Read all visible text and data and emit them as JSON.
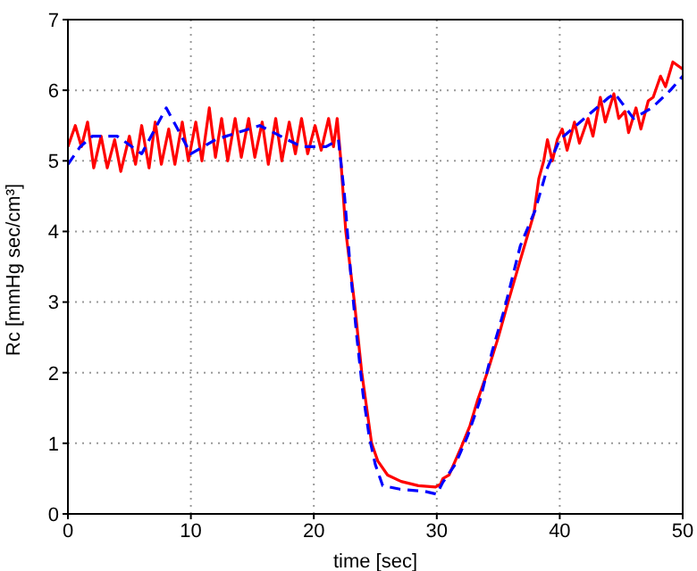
{
  "chart_data": {
    "type": "line",
    "xlabel": "time [sec]",
    "ylabel": "Rc [mmHg sec/cm³]",
    "xlim": [
      0,
      50
    ],
    "ylim": [
      0,
      7
    ],
    "xticks": [
      0,
      10,
      20,
      30,
      40,
      50
    ],
    "yticks": [
      0,
      1,
      2,
      3,
      4,
      5,
      6,
      7
    ],
    "grid": true,
    "marker": "none",
    "series": [
      {
        "color": "#ff0000",
        "line_style": "solid",
        "x": [
          0,
          0.6,
          1.1,
          1.6,
          2.1,
          2.7,
          3.2,
          3.8,
          4.3,
          5.0,
          5.5,
          6.0,
          6.6,
          7.1,
          7.6,
          8.2,
          8.7,
          9.3,
          9.8,
          10.4,
          10.9,
          11.5,
          12.0,
          12.5,
          13.0,
          13.6,
          14.1,
          14.7,
          15.2,
          15.8,
          16.3,
          16.9,
          17.4,
          18.0,
          18.5,
          19.0,
          19.5,
          20.1,
          20.6,
          21.2,
          21.6,
          21.9,
          22.2,
          22.6,
          23.3,
          23.9,
          24.7,
          25.2,
          26,
          27.1,
          28.5,
          29.9,
          30.3,
          30.5,
          31,
          31.5,
          32,
          32.7,
          33.3,
          34.1,
          35,
          35.8,
          36.8,
          37.9,
          38.3,
          38.7,
          39,
          39.4,
          39.8,
          40.2,
          40.6,
          41.2,
          41.6,
          42.3,
          42.7,
          43.3,
          43.7,
          44.4,
          44.8,
          45.3,
          45.6,
          46.2,
          46.6,
          47.2,
          47.6,
          48.2,
          48.6,
          49.2,
          49.6,
          50
        ],
        "values": [
          5.2,
          5.5,
          5.2,
          5.55,
          4.9,
          5.35,
          4.9,
          5.3,
          4.85,
          5.35,
          4.95,
          5.5,
          4.9,
          5.55,
          4.95,
          5.45,
          4.95,
          5.55,
          5.0,
          5.55,
          5.0,
          5.75,
          5.05,
          5.6,
          5.0,
          5.6,
          5.05,
          5.6,
          5.05,
          5.55,
          4.95,
          5.6,
          5.0,
          5.55,
          5.1,
          5.6,
          5.1,
          5.5,
          5.15,
          5.6,
          5.2,
          5.6,
          5.0,
          4.0,
          3.0,
          2.0,
          1.0,
          0.75,
          0.55,
          0.46,
          0.4,
          0.38,
          0.42,
          0.5,
          0.55,
          0.75,
          0.95,
          1.25,
          1.6,
          2.0,
          2.5,
          3.0,
          3.6,
          4.25,
          4.75,
          5.0,
          5.3,
          5.0,
          5.3,
          5.45,
          5.15,
          5.55,
          5.25,
          5.6,
          5.35,
          5.9,
          5.55,
          5.95,
          5.6,
          5.7,
          5.4,
          5.75,
          5.45,
          5.85,
          5.9,
          6.2,
          6.05,
          6.4,
          6.35,
          6.3
        ]
      },
      {
        "color": "#0000ff",
        "line_style": "dashed",
        "x": [
          0,
          1,
          2,
          4,
          6,
          8,
          10,
          12,
          15.6,
          19,
          21,
          22,
          22.5,
          23,
          23.5,
          24,
          24.5,
          25,
          25.6,
          27,
          29,
          30,
          30.5,
          31.5,
          32.5,
          33.5,
          34.5,
          35.5,
          36.8,
          38,
          39,
          40,
          42,
          44,
          44.5,
          46,
          47.5,
          49,
          50
        ],
        "values": [
          4.95,
          5.2,
          5.35,
          5.35,
          5.1,
          5.75,
          5.1,
          5.3,
          5.5,
          5.2,
          5.2,
          5.3,
          4.5,
          3.4,
          2.5,
          1.7,
          1.1,
          0.7,
          0.4,
          0.35,
          0.32,
          0.28,
          0.45,
          0.7,
          1.1,
          1.6,
          2.3,
          2.9,
          3.8,
          4.3,
          4.9,
          5.3,
          5.6,
          5.9,
          5.95,
          5.6,
          5.75,
          6.0,
          6.2
        ]
      }
    ]
  }
}
